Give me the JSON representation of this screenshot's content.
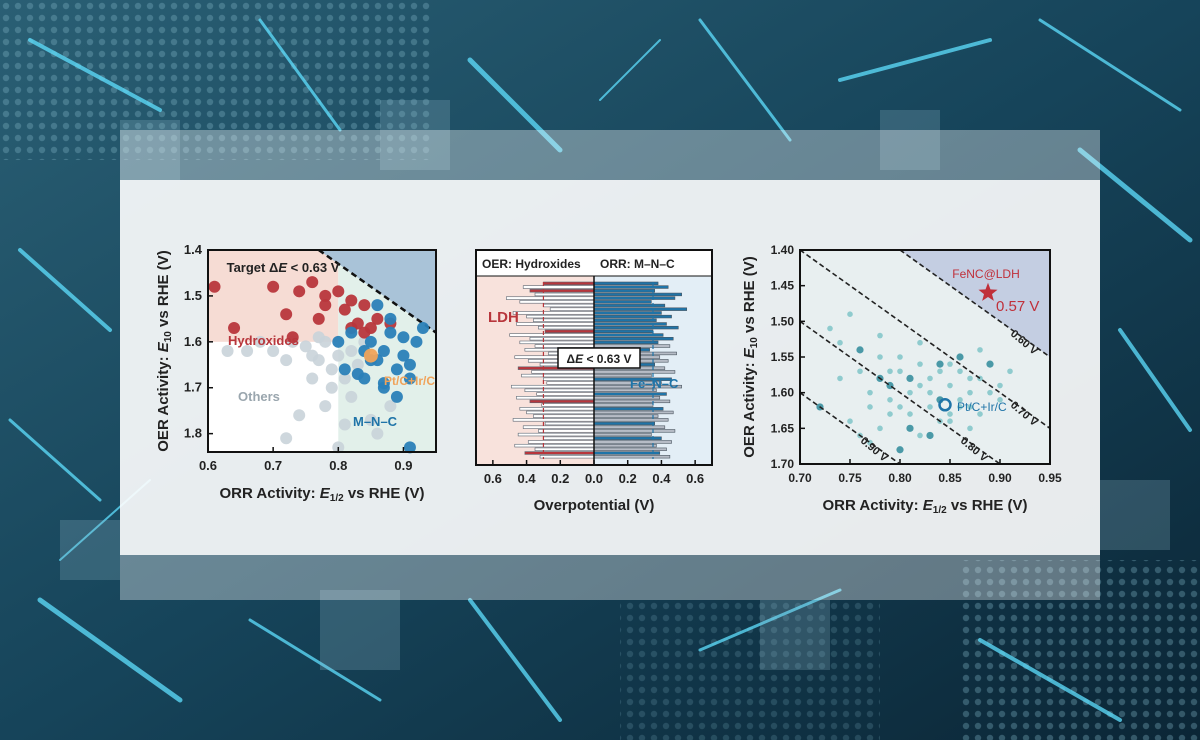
{
  "chart_data": [
    {
      "type": "scatter",
      "xlabel_pre": "ORR Activity: ",
      "xlabel_var": "E",
      "xlabel_sub": "1/2",
      "xlabel_post": " vs RHE (V)",
      "ylabel_pre": "OER Activity: ",
      "ylabel_var": "E",
      "ylabel_sub": "10",
      "ylabel_post": " vs RHE (V)",
      "xlim": [
        0.6,
        0.95
      ],
      "ylim": [
        1.84,
        1.4
      ],
      "xticks": [
        0.6,
        0.7,
        0.8,
        0.9
      ],
      "xtick_labels": [
        "0.6",
        "0.7",
        "0.8",
        "0.9"
      ],
      "yticks": [
        1.4,
        1.5,
        1.6,
        1.7,
        1.8
      ],
      "ytick_labels": [
        "1.4",
        "1.5",
        "1.6",
        "1.7",
        "1.8"
      ],
      "target_pre": "Target Δ",
      "target_var": "E",
      "target_post": " < 0.63 V",
      "target_deltaE": 0.63,
      "regions": [
        {
          "name": "Hydroxides",
          "color": "#b8363c"
        },
        {
          "name": "Others",
          "color": "#9aa6ae"
        },
        {
          "name": "M–N–C",
          "color": "#1f74a8"
        },
        {
          "name": "Pt/C+Ir/C",
          "color": "#f0a35a"
        }
      ],
      "series": [
        {
          "label_key": "others",
          "color": "#c9d3d9",
          "x": [
            0.63,
            0.66,
            0.68,
            0.7,
            0.72,
            0.73,
            0.75,
            0.76,
            0.77,
            0.78,
            0.79,
            0.8,
            0.81,
            0.82,
            0.83,
            0.84,
            0.72,
            0.78,
            0.81,
            0.85,
            0.86,
            0.74,
            0.76,
            0.82,
            0.79,
            0.77,
            0.83,
            0.88,
            0.8
          ],
          "y": [
            1.62,
            1.62,
            1.6,
            1.62,
            1.64,
            1.6,
            1.61,
            1.63,
            1.64,
            1.6,
            1.66,
            1.63,
            1.68,
            1.62,
            1.67,
            1.6,
            1.81,
            1.74,
            1.78,
            1.77,
            1.8,
            1.76,
            1.68,
            1.72,
            1.7,
            1.59,
            1.65,
            1.74,
            1.83
          ]
        },
        {
          "label_key": "hydroxides",
          "color": "#b8363c",
          "x": [
            0.61,
            0.7,
            0.74,
            0.76,
            0.78,
            0.8,
            0.81,
            0.82,
            0.83,
            0.84,
            0.85,
            0.86,
            0.72,
            0.78,
            0.64,
            0.82,
            0.84,
            0.88,
            0.77,
            0.73
          ],
          "y": [
            1.48,
            1.48,
            1.49,
            1.47,
            1.52,
            1.49,
            1.53,
            1.51,
            1.56,
            1.52,
            1.57,
            1.55,
            1.54,
            1.5,
            1.57,
            1.57,
            1.58,
            1.56,
            1.55,
            1.59
          ]
        },
        {
          "label_key": "mnc",
          "color": "#2a7fb8",
          "x": [
            0.8,
            0.82,
            0.84,
            0.85,
            0.86,
            0.87,
            0.88,
            0.89,
            0.9,
            0.91,
            0.92,
            0.83,
            0.85,
            0.87,
            0.89,
            0.91,
            0.93,
            0.86,
            0.88,
            0.9,
            0.84,
            0.87,
            0.81,
            0.91
          ],
          "y": [
            1.6,
            1.58,
            1.62,
            1.6,
            1.64,
            1.62,
            1.55,
            1.66,
            1.59,
            1.65,
            1.6,
            1.67,
            1.64,
            1.7,
            1.72,
            1.68,
            1.57,
            1.52,
            1.58,
            1.63,
            1.68,
            1.69,
            1.66,
            1.83
          ]
        },
        {
          "label_key": "pt",
          "color": "#f0a35a",
          "x": [
            0.85
          ],
          "y": [
            1.63
          ]
        }
      ]
    },
    {
      "type": "bar",
      "orientation": "horizontal-diverging",
      "left_header": "OER: Hydroxides",
      "right_header": "ORR: M–N–C",
      "left_label": "LDH",
      "right_label": "Fe–N–C",
      "xlabel": "Overpotential (V)",
      "xlim": [
        -0.7,
        0.7
      ],
      "xticks": [
        -0.6,
        -0.4,
        -0.2,
        0,
        0.2,
        0.4,
        0.6
      ],
      "xtick_labels": [
        "0.6",
        "0.4",
        "0.2",
        "0.0",
        "0.2",
        "0.4",
        "0.6"
      ],
      "callout_pre": "Δ",
      "callout_var": "E",
      "callout_post": " < 0.63 V",
      "left_highlight_color": "#b8363c",
      "right_highlight_color": "#1f74a8",
      "dashed_ref_left": 0.3,
      "dashed_ref_right": 0.35,
      "left_values": [
        0.3,
        0.42,
        0.38,
        0.35,
        0.52,
        0.44,
        0.3,
        0.26,
        0.48,
        0.4,
        0.36,
        0.46,
        0.33,
        0.29,
        0.5,
        0.38,
        0.44,
        0.35,
        0.41,
        0.27,
        0.47,
        0.39,
        0.32,
        0.45,
        0.37,
        0.43,
        0.3,
        0.28,
        0.49,
        0.41,
        0.34,
        0.46,
        0.38,
        0.31,
        0.44,
        0.4,
        0.36,
        0.48,
        0.29,
        0.42,
        0.33,
        0.45,
        0.3,
        0.39,
        0.47,
        0.35,
        0.41,
        0.32
      ],
      "left_highlight_index": [
        0,
        2,
        13,
        23,
        32,
        46
      ],
      "right_values": [
        0.38,
        0.44,
        0.36,
        0.52,
        0.48,
        0.34,
        0.42,
        0.55,
        0.4,
        0.46,
        0.37,
        0.43,
        0.5,
        0.35,
        0.41,
        0.47,
        0.38,
        0.45,
        0.33,
        0.49,
        0.39,
        0.44,
        0.36,
        0.42,
        0.48,
        0.34,
        0.46,
        0.4,
        0.52,
        0.37,
        0.43,
        0.39,
        0.45,
        0.35,
        0.41,
        0.47,
        0.38,
        0.44,
        0.36,
        0.42,
        0.48,
        0.34,
        0.4,
        0.46,
        0.37,
        0.43,
        0.39,
        0.45
      ],
      "right_highlight_index": [
        0,
        1,
        2,
        3,
        4,
        5,
        6,
        7,
        8,
        9,
        10,
        11,
        12,
        13,
        14,
        15,
        16,
        18,
        22,
        26,
        30,
        34,
        38,
        42,
        46
      ]
    },
    {
      "type": "scatter",
      "xlabel_pre": "ORR Activity: ",
      "xlabel_var": "E",
      "xlabel_sub": "1/2",
      "xlabel_post": " vs RHE (V)",
      "ylabel_pre": "OER Activity: ",
      "ylabel_var": "E",
      "ylabel_sub": "10",
      "ylabel_post": " vs RHE (V)",
      "xlim": [
        0.7,
        0.95
      ],
      "ylim": [
        1.7,
        1.4
      ],
      "xticks": [
        0.7,
        0.75,
        0.8,
        0.85,
        0.9,
        0.95
      ],
      "xtick_labels": [
        "0.70",
        "0.75",
        "0.80",
        "0.85",
        "0.90",
        "0.95"
      ],
      "yticks": [
        1.4,
        1.45,
        1.5,
        1.55,
        1.6,
        1.65,
        1.7
      ],
      "ytick_labels": [
        "1.40",
        "1.45",
        "1.50",
        "1.55",
        "1.60",
        "1.65",
        "1.70"
      ],
      "contours": [
        {
          "deltaE": 0.9,
          "label": "0.90 V"
        },
        {
          "deltaE": 0.8,
          "label": "0.80 V"
        },
        {
          "deltaE": 0.7,
          "label": "0.70 V"
        },
        {
          "deltaE": 0.6,
          "label": "0.60 V"
        }
      ],
      "star": {
        "name": "FeNC@LDH",
        "value_label": "0.57 V",
        "x": 0.888,
        "y": 1.46,
        "color": "#c0303a"
      },
      "reference": {
        "name": "Pt/C+Ir/C",
        "x": 0.845,
        "y": 1.617,
        "color": "#1f74a8"
      },
      "points_x": [
        0.72,
        0.74,
        0.76,
        0.77,
        0.78,
        0.79,
        0.8,
        0.81,
        0.82,
        0.83,
        0.84,
        0.85,
        0.86,
        0.87,
        0.88,
        0.89,
        0.9,
        0.75,
        0.77,
        0.79,
        0.81,
        0.83,
        0.85,
        0.87,
        0.89,
        0.76,
        0.78,
        0.8,
        0.82,
        0.84,
        0.86,
        0.88,
        0.73,
        0.79,
        0.81,
        0.83,
        0.85,
        0.87,
        0.91,
        0.77,
        0.8,
        0.82,
        0.84,
        0.86,
        0.74,
        0.78,
        0.83,
        0.88,
        0.9,
        0.76,
        0.81,
        0.85,
        0.87,
        0.79,
        0.82,
        0.84,
        0.8,
        0.86,
        0.78,
        0.75
      ],
      "points_y": [
        1.62,
        1.58,
        1.57,
        1.6,
        1.55,
        1.59,
        1.57,
        1.6,
        1.56,
        1.58,
        1.61,
        1.59,
        1.57,
        1.6,
        1.58,
        1.56,
        1.61,
        1.64,
        1.62,
        1.63,
        1.65,
        1.62,
        1.64,
        1.62,
        1.6,
        1.54,
        1.52,
        1.55,
        1.53,
        1.57,
        1.55,
        1.54,
        1.51,
        1.61,
        1.63,
        1.66,
        1.63,
        1.65,
        1.57,
        1.67,
        1.68,
        1.66,
        1.64,
        1.62,
        1.53,
        1.58,
        1.6,
        1.63,
        1.59,
        1.66,
        1.58,
        1.56,
        1.58,
        1.57,
        1.59,
        1.56,
        1.62,
        1.61,
        1.65,
        1.49
      ]
    }
  ],
  "colors": {
    "hydroxide_red": "#b8363c",
    "mnc_blue": "#1f74a8",
    "pt_orange": "#f0a35a",
    "target_region": "#a9c3d8",
    "hydroxide_region": "#f6dcd4",
    "mnc_region": "#e2f0ea"
  }
}
